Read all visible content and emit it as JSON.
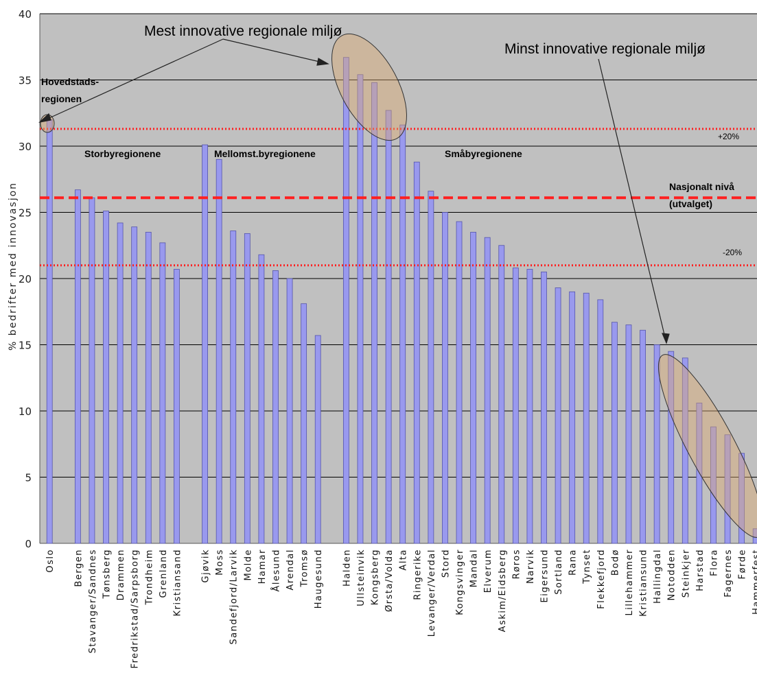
{
  "chart_data": {
    "type": "bar",
    "ylabel": "% bedrifter med innovasjon",
    "xlabel": "",
    "ylim": [
      0,
      40
    ],
    "yticks": [
      0,
      5,
      10,
      15,
      20,
      25,
      30,
      35,
      40
    ],
    "grid": true,
    "bar_color": "#9999ee",
    "plot_background": "#c0c0c0",
    "groups": [
      {
        "categories": [
          "Oslo"
        ],
        "values": [
          32
        ]
      },
      {
        "categories": [
          "Bergen",
          "Stavanger/Sandnes",
          "Tønsberg",
          "Drammen",
          "Fredrikstad/Sarpsborg",
          "Trondheim",
          "Grenland",
          "Kristiansand"
        ],
        "values": [
          26.7,
          26.1,
          25.1,
          24.2,
          23.9,
          23.5,
          22.7,
          20.7
        ]
      },
      {
        "categories": [
          "Gjøvik",
          "Moss",
          "Sandefjord/Larvik",
          "Molde",
          "Hamar",
          "Ålesund",
          "Arendal",
          "Tromsø",
          "Haugesund"
        ],
        "values": [
          30.1,
          29.0,
          23.6,
          23.4,
          21.8,
          20.6,
          20.0,
          18.1,
          15.7
        ]
      },
      {
        "categories": [
          "Halden",
          "Ullsteinvik",
          "Kongsberg",
          "Ørsta/Volda",
          "Alta",
          "Ringerike",
          "Levanger/Verdal",
          "Stord",
          "Kongsvinger",
          "Mandal",
          "Elverum",
          "Askim/Eidsberg",
          "Røros",
          "Narvik",
          "Eigersund",
          "Sortland",
          "Rana",
          "Tynset",
          "Flekkefjord",
          "Bodø",
          "Lillehammer",
          "Kristiansund",
          "Hallingdal",
          "Notodden",
          "Steinkjer",
          "Harstad",
          "Flora",
          "Fagernes",
          "Førde",
          "Hammerfest"
        ],
        "values": [
          36.7,
          35.4,
          34.8,
          32.7,
          31.6,
          28.8,
          26.6,
          25.0,
          24.3,
          23.5,
          23.1,
          22.5,
          20.8,
          20.7,
          20.5,
          19.3,
          19.0,
          18.9,
          18.4,
          16.7,
          16.5,
          16.1,
          15.0,
          14.5,
          14.0,
          10.6,
          8.8,
          8.2,
          6.8,
          1.1
        ]
      }
    ],
    "reference_lines": [
      {
        "value": 31.3,
        "style": "dotted",
        "color": "#ff2020",
        "label": "+20%"
      },
      {
        "value": 26.1,
        "style": "dashed",
        "color": "#ff2020",
        "label": "Nasjonalt nivå (utvalget)"
      },
      {
        "value": 21.0,
        "style": "dotted",
        "color": "#ff2020",
        "label": "-20%"
      }
    ],
    "annotations": {
      "most_innovative": "Mest innovative regionale miljø",
      "least_innovative": "Minst innovative regionale miljø",
      "capital_line1": "Hovedstads-",
      "capital_line2": "regionen",
      "storby": "Storbyregionene",
      "mellomst": "Mellomst.byregionene",
      "smaby": "Småbyregionene",
      "nasjonalt_line1": "Nasjonalt nivå",
      "nasjonalt_line2": "(utvalget)",
      "plus20": "+20%",
      "minus20": "-20%"
    }
  }
}
